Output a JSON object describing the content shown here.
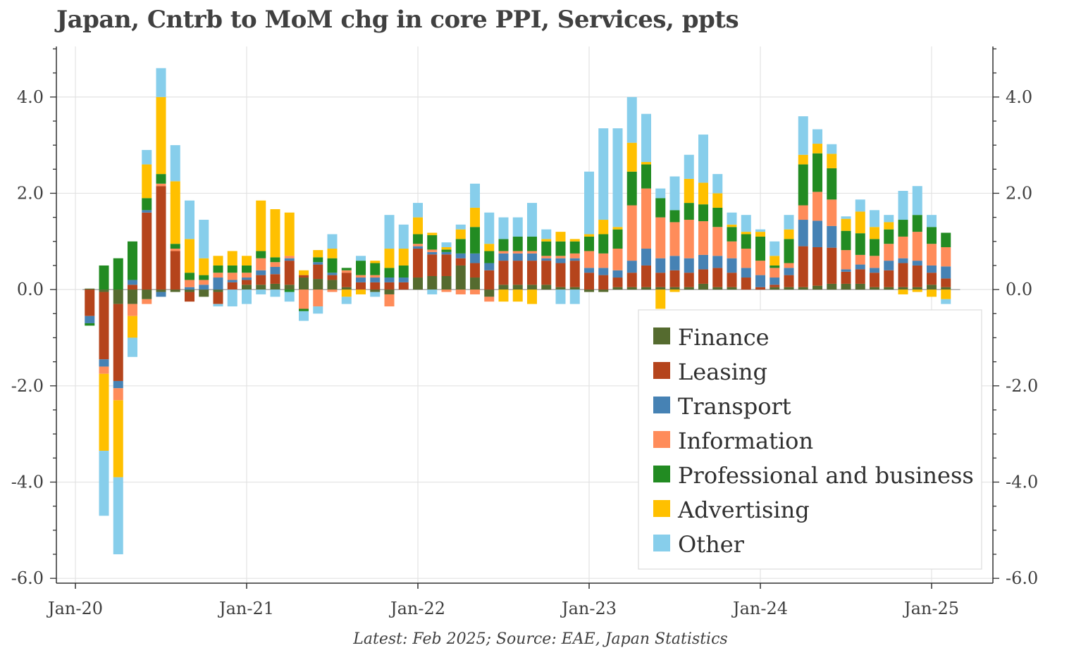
{
  "chart_data": {
    "type": "bar",
    "stacked": true,
    "title": "Japan, Cntrb to MoM chg in core PPI, Services, ppts",
    "source": "Latest: Feb 2025; Source: EAE, Japan Statistics",
    "start": "Feb-20",
    "x_tick_labels": [
      "Jan-20",
      "Jan-21",
      "Jan-22",
      "Jan-23",
      "Jan-24",
      "Jan-25"
    ],
    "y_tick_labels": [
      "-6.0",
      "-4.0",
      "-2.0",
      "0.0",
      "2.0",
      "4.0"
    ],
    "ylim": [
      -6.1,
      5.05
    ],
    "grid": true,
    "legend_position": "bottom-right",
    "categories": [
      "Feb-20",
      "Mar-20",
      "Apr-20",
      "May-20",
      "Jun-20",
      "Jul-20",
      "Aug-20",
      "Sep-20",
      "Oct-20",
      "Nov-20",
      "Dec-20",
      "Jan-21",
      "Feb-21",
      "Mar-21",
      "Apr-21",
      "May-21",
      "Jun-21",
      "Jul-21",
      "Aug-21",
      "Sep-21",
      "Oct-21",
      "Nov-21",
      "Dec-21",
      "Jan-22",
      "Feb-22",
      "Mar-22",
      "Apr-22",
      "May-22",
      "Jun-22",
      "Jul-22",
      "Aug-22",
      "Sep-22",
      "Oct-22",
      "Nov-22",
      "Dec-22",
      "Jan-23",
      "Feb-23",
      "Mar-23",
      "Apr-23",
      "May-23",
      "Jun-23",
      "Jul-23",
      "Aug-23",
      "Sep-23",
      "Oct-23",
      "Nov-23",
      "Dec-23",
      "Jan-24",
      "Feb-24",
      "Mar-24",
      "Apr-24",
      "May-24",
      "Jun-24",
      "Jul-24",
      "Aug-24",
      "Sep-24",
      "Oct-24",
      "Nov-24",
      "Dec-24",
      "Jan-25",
      "Feb-25"
    ],
    "series": [
      {
        "name": "Finance",
        "color": "#556b2f",
        "values": [
          0.02,
          -0.05,
          -0.3,
          -0.3,
          -0.2,
          -0.05,
          -0.05,
          -0.05,
          -0.15,
          -0.05,
          0.0,
          0.1,
          0.1,
          0.12,
          0.1,
          0.25,
          0.22,
          0.2,
          0.05,
          0.0,
          -0.05,
          -0.1,
          0.0,
          0.25,
          0.28,
          0.28,
          0.5,
          0.25,
          -0.15,
          0.1,
          0.1,
          0.1,
          0.1,
          0.05,
          0.05,
          -0.05,
          -0.05,
          0.05,
          0.05,
          0.05,
          0.05,
          0.05,
          0.05,
          0.12,
          0.05,
          0.05,
          0.0,
          0.0,
          0.05,
          0.05,
          0.05,
          0.08,
          0.12,
          0.12,
          0.12,
          0.05,
          0.05,
          0.05,
          0.05,
          0.1,
          0.05
        ]
      },
      {
        "name": "Leasing",
        "color": "#b5441c",
        "values": [
          -0.55,
          -1.4,
          -1.6,
          0.1,
          1.6,
          2.15,
          0.8,
          -0.2,
          0.0,
          -0.25,
          0.15,
          0.1,
          0.2,
          0.2,
          0.5,
          0.05,
          0.3,
          0.1,
          0.3,
          0.15,
          0.15,
          0.15,
          0.15,
          0.6,
          0.45,
          0.45,
          0.15,
          0.3,
          0.4,
          0.5,
          0.5,
          0.5,
          0.5,
          0.5,
          0.55,
          0.35,
          0.3,
          0.2,
          0.3,
          0.45,
          0.3,
          0.35,
          0.3,
          0.3,
          0.4,
          0.3,
          0.25,
          0.05,
          0.05,
          0.25,
          0.85,
          0.8,
          0.75,
          0.25,
          0.3,
          0.3,
          0.35,
          0.5,
          0.45,
          0.25,
          0.18
        ]
      },
      {
        "name": "Transport",
        "color": "#4682b4",
        "values": [
          -0.15,
          -0.15,
          -0.15,
          0.1,
          0.05,
          -0.1,
          0.0,
          0.05,
          0.1,
          0.25,
          0.05,
          0.05,
          0.1,
          0.15,
          0.05,
          0.0,
          0.05,
          0.05,
          0.0,
          0.1,
          0.1,
          0.1,
          0.1,
          0.05,
          0.05,
          0.05,
          0.1,
          0.2,
          0.15,
          0.15,
          0.15,
          0.15,
          0.05,
          0.1,
          0.05,
          0.1,
          0.15,
          0.15,
          0.25,
          0.35,
          0.3,
          0.3,
          0.3,
          0.3,
          0.25,
          0.3,
          0.2,
          0.25,
          0.15,
          0.15,
          0.55,
          0.55,
          0.45,
          0.05,
          0.1,
          0.1,
          0.2,
          0.1,
          0.1,
          0.15,
          0.25
        ]
      },
      {
        "name": "Information",
        "color": "#ff8c5a",
        "values": [
          0.0,
          -0.15,
          -0.25,
          -0.25,
          -0.1,
          0.05,
          0.05,
          0.15,
          0.1,
          0.1,
          0.15,
          0.1,
          0.25,
          0.1,
          0.05,
          -0.4,
          -0.35,
          -0.05,
          0.05,
          0.05,
          0.05,
          -0.25,
          0.0,
          0.05,
          0.05,
          -0.05,
          -0.1,
          -0.1,
          -0.1,
          0.05,
          0.05,
          0.05,
          0.05,
          0.05,
          0.1,
          0.35,
          0.3,
          0.45,
          1.15,
          1.25,
          0.85,
          0.7,
          0.8,
          0.7,
          0.6,
          0.35,
          0.4,
          0.3,
          0.2,
          0.1,
          0.3,
          0.6,
          0.55,
          0.4,
          0.2,
          0.25,
          0.35,
          0.45,
          0.6,
          0.45,
          0.4
        ]
      },
      {
        "name": "Professional and business",
        "color": "#228b22",
        "values": [
          -0.05,
          0.5,
          0.65,
          0.8,
          0.25,
          0.2,
          0.1,
          0.15,
          0.1,
          0.15,
          0.15,
          0.15,
          0.15,
          0.1,
          -0.05,
          -0.05,
          0.1,
          0.3,
          0.05,
          0.3,
          0.25,
          0.2,
          0.25,
          0.2,
          0.3,
          0.05,
          0.3,
          0.55,
          0.25,
          0.25,
          0.3,
          0.3,
          0.3,
          0.3,
          0.25,
          0.3,
          0.4,
          0.4,
          0.7,
          0.5,
          0.4,
          0.25,
          0.35,
          0.35,
          0.4,
          0.3,
          0.3,
          0.5,
          0.05,
          0.5,
          0.85,
          0.8,
          0.65,
          0.4,
          0.45,
          0.35,
          0.3,
          0.35,
          0.35,
          0.35,
          0.3
        ]
      },
      {
        "name": "Advertising",
        "color": "#ffc000",
        "values": [
          0.0,
          -1.6,
          -1.6,
          -0.45,
          0.7,
          1.6,
          1.3,
          0.7,
          0.35,
          0.2,
          0.3,
          0.2,
          1.05,
          1.0,
          0.9,
          0.1,
          0.15,
          0.2,
          -0.15,
          -0.1,
          0.05,
          0.4,
          0.35,
          0.35,
          0.05,
          0.05,
          0.2,
          0.4,
          0.15,
          -0.25,
          -0.25,
          -0.3,
          0.05,
          0.2,
          0.05,
          0.05,
          0.3,
          0.05,
          0.6,
          0.05,
          -0.4,
          -0.05,
          0.5,
          0.45,
          0.3,
          0.05,
          0.05,
          0.1,
          0.2,
          0.2,
          0.2,
          0.2,
          0.3,
          0.25,
          0.45,
          0.25,
          0.15,
          -0.1,
          -0.05,
          -0.15,
          -0.2
        ]
      },
      {
        "name": "Other",
        "color": "#87ceeb",
        "values": [
          0.0,
          -1.35,
          -1.6,
          -0.4,
          0.3,
          0.6,
          0.75,
          0.8,
          0.8,
          -0.05,
          -0.35,
          -0.3,
          -0.1,
          -0.15,
          -0.2,
          -0.2,
          -0.15,
          0.3,
          -0.15,
          0.1,
          -0.1,
          0.7,
          0.5,
          0.3,
          -0.1,
          0.1,
          0.1,
          0.5,
          0.65,
          0.45,
          0.4,
          0.7,
          0.2,
          -0.3,
          -0.3,
          1.3,
          1.9,
          2.05,
          0.95,
          1.0,
          0.2,
          0.7,
          0.5,
          1.0,
          0.4,
          0.25,
          0.35,
          0.05,
          0.3,
          0.3,
          0.8,
          0.3,
          0.2,
          0.05,
          0.25,
          0.35,
          0.15,
          0.6,
          0.6,
          0.25,
          -0.1
        ]
      }
    ]
  }
}
